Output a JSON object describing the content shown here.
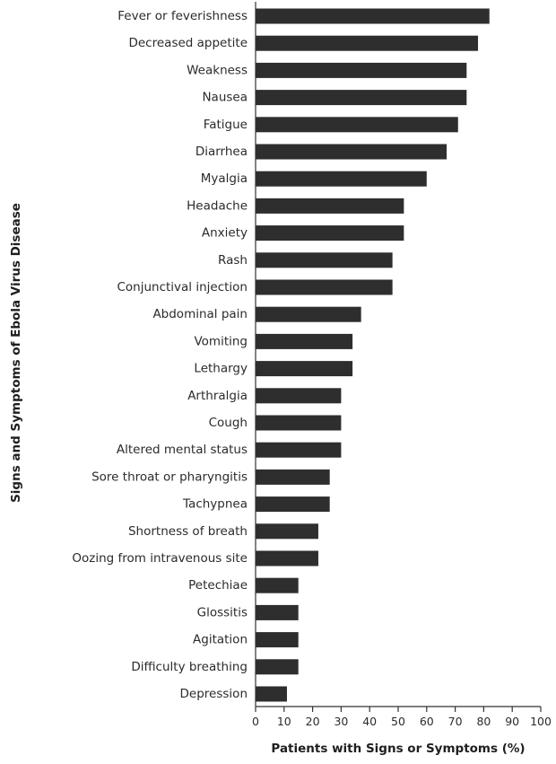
{
  "chart_data": {
    "type": "bar",
    "orientation": "horizontal",
    "categories": [
      "Fever or feverishness",
      "Decreased appetite",
      "Weakness",
      "Nausea",
      "Fatigue",
      "Diarrhea",
      "Myalgia",
      "Headache",
      "Anxiety",
      "Rash",
      "Conjunctival injection",
      "Abdominal pain",
      "Vomiting",
      "Lethargy",
      "Arthralgia",
      "Cough",
      "Altered mental status",
      "Sore throat or pharyngitis",
      "Tachypnea",
      "Shortness of breath",
      "Oozing from intravenous site",
      "Petechiae",
      "Glossitis",
      "Agitation",
      "Difficulty breathing",
      "Depression"
    ],
    "values": [
      82,
      78,
      74,
      74,
      71,
      67,
      60,
      52,
      52,
      48,
      48,
      37,
      34,
      34,
      30,
      30,
      30,
      26,
      26,
      22,
      22,
      15,
      15,
      15,
      15,
      11
    ],
    "xlabel": "Patients with Signs or Symptoms (%)",
    "ylabel": "Signs and Symptoms of Ebola Virus Disease",
    "xlim": [
      0,
      100
    ],
    "xticks": [
      0,
      10,
      20,
      30,
      40,
      50,
      60,
      70,
      80,
      90,
      100
    ],
    "bar_color": "#2e2e2e",
    "axis_color": "#333333",
    "grid": false,
    "legend": "none"
  }
}
